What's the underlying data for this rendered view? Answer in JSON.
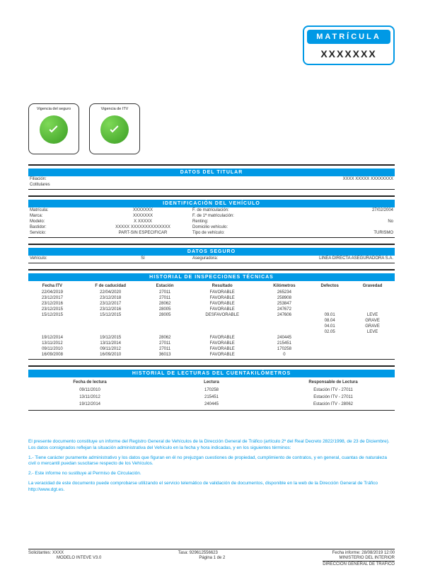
{
  "matricula": {
    "label": "MATRÍCULA",
    "value": "XXXXXXX"
  },
  "badges": {
    "seguro": "Vigencia del seguro",
    "itv": "Vigencia de ITV"
  },
  "sections": {
    "titular": "DATOS DEL TITULAR",
    "identificacion": "IDENTIFICACIÓN DEL VEHÍCULO",
    "seguro": "DATOS SEGURO",
    "historial_itv": "HISTORIAL DE INSPECCIONES TÉCNICAS",
    "historial_km": "HISTORIAL DE LECTURAS DEL CUENTAKILÓMETROS"
  },
  "titular": {
    "filiacion_label": "Filiación:",
    "filiacion_value": "XXXX XXXXX  XXXXXXXX",
    "cotitulares_label": "Cotitulares"
  },
  "ident": {
    "matricula_label": "Matrícula:",
    "matricula_val": "XXXXXXX",
    "fmat_label": "F. de matriculación:",
    "fmat_val": "27/02/2004",
    "marca_label": "Marca:",
    "marca_val": "XXXXXXX",
    "f1mat_label": "F. de 1ª matriculación:",
    "f1mat_val": "",
    "modelo_label": "Modelo:",
    "modelo_val": "X XXXXX",
    "renting_label": "Renting:",
    "renting_val": "No",
    "bastidor_label": "Bastidor:",
    "bastidor_val": "XXXXX XXXXXXXXXXXXXX",
    "dom_label": "Domicilio vehículo:",
    "dom_val": "",
    "servicio_label": "Servicio:",
    "servicio_val": "PART-SIN ESPECIFICAR",
    "tipo_label": "Tipo de vehículo:",
    "tipo_val": "TURISMO"
  },
  "seguro": {
    "veh_label": "Vehículo:",
    "veh_val": "Sí",
    "aseg_label": "Aseguradora:",
    "aseg_val": "LINEA DIRECTA ASEGURADORA S.A."
  },
  "itv_headers": {
    "fecha": "Fecha ITV",
    "caducidad": "F de caducidad",
    "estacion": "Estación",
    "resultado": "Resultado",
    "km": "Kilómetros",
    "defectos": "Defectos",
    "gravedad": "Gravedad"
  },
  "itv_rows": [
    {
      "fecha": "22/04/2019",
      "cad": "22/04/2020",
      "est": "27011",
      "res": "FAVORABLE",
      "km": "265234",
      "def": "",
      "grav": ""
    },
    {
      "fecha": "23/12/2017",
      "cad": "23/12/2018",
      "est": "27011",
      "res": "FAVORABLE",
      "km": "258908",
      "def": "",
      "grav": ""
    },
    {
      "fecha": "23/12/2016",
      "cad": "23/12/2017",
      "est": "28062",
      "res": "FAVORABLE",
      "km": "253847",
      "def": "",
      "grav": ""
    },
    {
      "fecha": "23/12/2015",
      "cad": "23/12/2016",
      "est": "28005",
      "res": "FAVORABLE",
      "km": "247672",
      "def": "",
      "grav": ""
    },
    {
      "fecha": "15/12/2015",
      "cad": "15/12/2015",
      "est": "28005",
      "res": "DESFAVORABLE",
      "km": "247606",
      "def": "09.01",
      "grav": "LEVE"
    },
    {
      "fecha": "",
      "cad": "",
      "est": "",
      "res": "",
      "km": "",
      "def": "08.04",
      "grav": "GRAVE"
    },
    {
      "fecha": "",
      "cad": "",
      "est": "",
      "res": "",
      "km": "",
      "def": "04.01",
      "grav": "GRAVE"
    },
    {
      "fecha": "",
      "cad": "",
      "est": "",
      "res": "",
      "km": "",
      "def": "02.05",
      "grav": "LEVE"
    },
    {
      "fecha": "19/12/2014",
      "cad": "19/12/2015",
      "est": "28062",
      "res": "FAVORABLE",
      "km": "240445",
      "def": "",
      "grav": ""
    },
    {
      "fecha": "13/11/2012",
      "cad": "13/11/2014",
      "est": "27011",
      "res": "FAVORABLE",
      "km": "215451",
      "def": "",
      "grav": ""
    },
    {
      "fecha": "09/11/2010",
      "cad": "09/11/2012",
      "est": "27011",
      "res": "FAVORABLE",
      "km": "170258",
      "def": "",
      "grav": ""
    },
    {
      "fecha": "16/09/2008",
      "cad": "16/09/2010",
      "est": "36013",
      "res": "FAVORABLE",
      "km": "0",
      "def": "",
      "grav": ""
    }
  ],
  "km_headers": {
    "fecha": "Fecha de lectura",
    "lectura": "Lectura",
    "resp": "Responsable de Lectura"
  },
  "km_rows": [
    {
      "fecha": "09/11/2010",
      "lect": "170258",
      "resp": "Estación ITV - 27011"
    },
    {
      "fecha": "13/11/2012",
      "lect": "215451",
      "resp": "Estación ITV - 27011"
    },
    {
      "fecha": "19/12/2014",
      "lect": "240445",
      "resp": "Estación ITV - 28062"
    }
  ],
  "disclaimer": {
    "p1": "El presente documento constituye un informe del Registro General de Vehículos de la Dirección General de Tráfico (artículo 2º del Real Decreto 2822/1998, de 23 de Diciembre). Los datos consignados reflejan la situación administrativa del Vehículo en la fecha y hora indicadas, y en los siguientes términos:",
    "p2": "1.- Tiene carácter puramente administrativo y los datos que figuran en él no prejuzgan cuestiones de propiedad, cumplimiento de contratos, y en general, cuantas de naturaleza civil o mercantil puedan suscitarse respecto de los Vehículos.",
    "p3": "2.- Este informe no sustituye al Permiso de Circulación.",
    "p4": "La veracidad de este documento puede comprobarse utilizando el servicio telemático de validación de documentos, disponible en la web de la Dirección General de Tráfico http://www.dgt.es."
  },
  "footer": {
    "solicitantes_label": "Solicitantes: XXXX",
    "tasa": "Tasa: 929612556623",
    "fecha": "Fecha informe: 28/08/2019 12:00",
    "modelo": "MODELO INTEVE V3.0",
    "pagina": "Página 1 de 2",
    "ministerio": "MINISTERIO DEL INTERIOR",
    "dgt": "DIRECCIÓN GENERAL DE TRÁFICO"
  }
}
